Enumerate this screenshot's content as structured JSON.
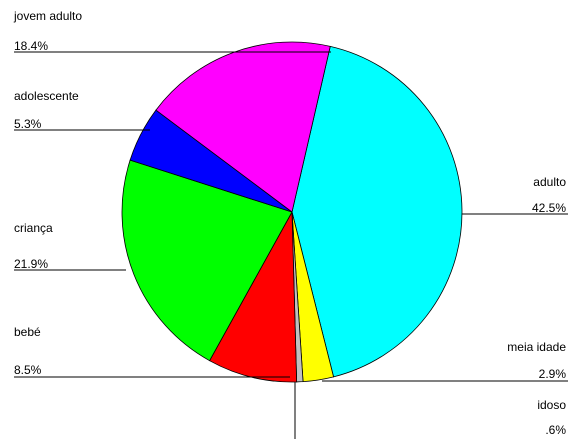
{
  "chart_data": {
    "type": "pie",
    "categories": [
      "adulto",
      "meia idade",
      "idoso",
      "bebé",
      "criança",
      "adolescente",
      "jovem adulto"
    ],
    "values": [
      42.5,
      2.9,
      0.6,
      8.5,
      21.9,
      5.3,
      18.4
    ],
    "value_labels": [
      "42.5%",
      "2.9%",
      ".6%",
      "8.5%",
      "21.9%",
      "5.3%",
      "18.4%"
    ],
    "colors": [
      "#00ffff",
      "#ffff00",
      "#c0c0c0",
      "#ff0000",
      "#00ff00",
      "#0000ff",
      "#ff00ff"
    ]
  }
}
